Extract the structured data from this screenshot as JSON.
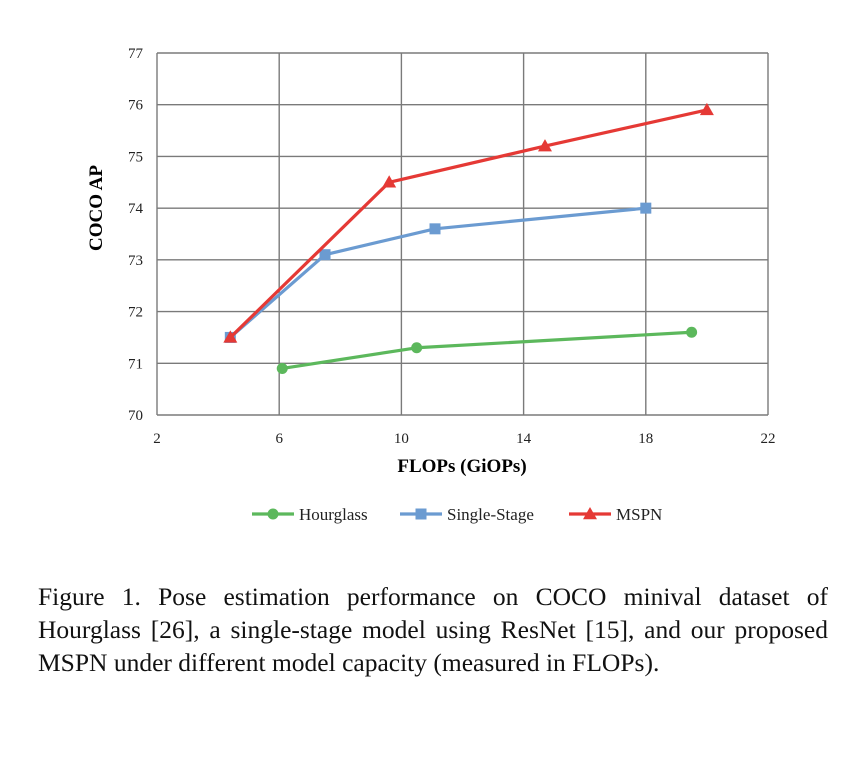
{
  "chart_data": {
    "type": "line",
    "xlabel": "FLOPs (GiOPs)",
    "ylabel": "COCO AP",
    "xlim": [
      2,
      22
    ],
    "ylim": [
      70,
      77
    ],
    "xticks": [
      "2",
      "6",
      "10",
      "14",
      "18",
      "22"
    ],
    "yticks": [
      "70",
      "71",
      "72",
      "73",
      "74",
      "75",
      "76",
      "77"
    ],
    "grid": true,
    "legend_position": "bottom",
    "series": [
      {
        "name": "Hourglass",
        "color": "#5cb85c",
        "marker": "circle",
        "x": [
          6.1,
          10.5,
          19.5
        ],
        "y": [
          70.9,
          71.3,
          71.6
        ]
      },
      {
        "name": "Single-Stage",
        "color": "#6b9bd1",
        "marker": "square",
        "x": [
          4.4,
          7.5,
          11.1,
          18.0
        ],
        "y": [
          71.5,
          73.1,
          73.6,
          74.0
        ]
      },
      {
        "name": "MSPN",
        "color": "#e53935",
        "marker": "triangle",
        "x": [
          4.4,
          9.6,
          14.7,
          20.0
        ],
        "y": [
          71.5,
          74.5,
          75.2,
          75.9
        ]
      }
    ]
  },
  "caption": "Figure 1. Pose estimation performance on COCO minival dataset of Hourglass [26], a single-stage model using ResNet [15], and our proposed MSPN under different model capacity (measured in FLOPs)."
}
